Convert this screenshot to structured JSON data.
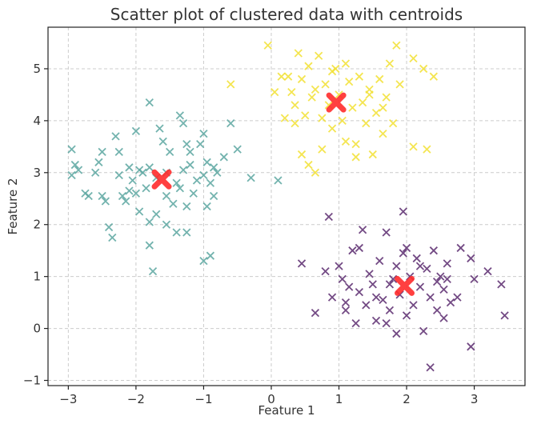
{
  "chart_data": {
    "type": "scatter",
    "title": "Scatter plot of clustered data with centroids",
    "xlabel": "Feature 1",
    "ylabel": "Feature 2",
    "xlim": [
      -3.3,
      3.75
    ],
    "ylim": [
      -1.1,
      5.8
    ],
    "xticks": [
      -3,
      -2,
      -1,
      0,
      1,
      2,
      3
    ],
    "yticks": [
      -1,
      0,
      1,
      2,
      3,
      4,
      5
    ],
    "grid": true,
    "series": [
      {
        "color": "#5aa6a0",
        "marker": "x",
        "points": [
          [
            -2.95,
            3.45
          ],
          [
            -2.9,
            3.15
          ],
          [
            -2.85,
            3.05
          ],
          [
            -2.95,
            2.95
          ],
          [
            -2.75,
            2.6
          ],
          [
            -2.7,
            2.55
          ],
          [
            -2.55,
            3.2
          ],
          [
            -2.5,
            3.4
          ],
          [
            -2.5,
            2.55
          ],
          [
            -2.45,
            2.45
          ],
          [
            -2.4,
            1.95
          ],
          [
            -2.35,
            1.75
          ],
          [
            -2.3,
            3.7
          ],
          [
            -2.25,
            3.4
          ],
          [
            -2.2,
            2.55
          ],
          [
            -2.15,
            2.45
          ],
          [
            -2.1,
            3.1
          ],
          [
            -2.05,
            2.85
          ],
          [
            -2.0,
            3.8
          ],
          [
            -2.0,
            2.6
          ],
          [
            -1.95,
            2.25
          ],
          [
            -1.9,
            3.0
          ],
          [
            -1.85,
            2.7
          ],
          [
            -1.8,
            4.35
          ],
          [
            -1.8,
            3.1
          ],
          [
            -1.8,
            2.05
          ],
          [
            -1.8,
            1.6
          ],
          [
            -1.75,
            1.1
          ],
          [
            -1.7,
            2.2
          ],
          [
            -1.65,
            3.85
          ],
          [
            -1.6,
            3.6
          ],
          [
            -1.55,
            3.0
          ],
          [
            -1.55,
            2.0
          ],
          [
            -1.5,
            3.4
          ],
          [
            -1.45,
            2.4
          ],
          [
            -1.4,
            2.8
          ],
          [
            -1.4,
            1.85
          ],
          [
            -1.35,
            4.1
          ],
          [
            -1.3,
            3.95
          ],
          [
            -1.3,
            3.05
          ],
          [
            -1.25,
            3.55
          ],
          [
            -1.25,
            2.35
          ],
          [
            -1.25,
            1.85
          ],
          [
            -1.2,
            3.15
          ],
          [
            -1.15,
            2.6
          ],
          [
            -1.1,
            2.85
          ],
          [
            -1.05,
            3.55
          ],
          [
            -1.0,
            2.95
          ],
          [
            -1.0,
            3.75
          ],
          [
            -1.0,
            1.3
          ],
          [
            -0.95,
            3.2
          ],
          [
            -0.95,
            2.35
          ],
          [
            -0.9,
            2.8
          ],
          [
            -0.9,
            1.4
          ],
          [
            -0.85,
            2.55
          ],
          [
            -0.8,
            3.0
          ],
          [
            -0.7,
            3.3
          ],
          [
            -0.6,
            3.95
          ],
          [
            -0.5,
            3.45
          ],
          [
            -0.3,
            2.9
          ],
          [
            0.1,
            2.85
          ],
          [
            -2.25,
            2.95
          ],
          [
            -2.1,
            2.65
          ],
          [
            -1.7,
            2.9
          ],
          [
            -1.55,
            2.55
          ],
          [
            -1.35,
            2.7
          ],
          [
            -2.6,
            3.0
          ],
          [
            -1.95,
            3.05
          ],
          [
            -1.2,
            3.4
          ],
          [
            -0.85,
            3.1
          ]
        ]
      },
      {
        "color": "#f2e033",
        "marker": "x",
        "points": [
          [
            -0.6,
            4.7
          ],
          [
            -0.05,
            5.45
          ],
          [
            0.25,
            4.85
          ],
          [
            0.3,
            4.55
          ],
          [
            0.35,
            4.3
          ],
          [
            0.35,
            3.95
          ],
          [
            0.4,
            5.3
          ],
          [
            0.45,
            4.8
          ],
          [
            0.5,
            4.1
          ],
          [
            0.55,
            3.15
          ],
          [
            0.55,
            5.05
          ],
          [
            0.6,
            4.45
          ],
          [
            0.65,
            3.0
          ],
          [
            0.7,
            5.25
          ],
          [
            0.75,
            4.05
          ],
          [
            0.75,
            3.45
          ],
          [
            0.8,
            4.7
          ],
          [
            0.85,
            4.3
          ],
          [
            0.9,
            3.85
          ],
          [
            0.95,
            5.0
          ],
          [
            1.0,
            4.5
          ],
          [
            1.05,
            4.0
          ],
          [
            1.1,
            5.1
          ],
          [
            1.1,
            3.6
          ],
          [
            1.15,
            4.75
          ],
          [
            1.2,
            4.25
          ],
          [
            1.25,
            3.55
          ],
          [
            1.3,
            4.85
          ],
          [
            1.35,
            4.35
          ],
          [
            1.4,
            3.95
          ],
          [
            1.45,
            4.6
          ],
          [
            1.5,
            3.35
          ],
          [
            1.55,
            4.15
          ],
          [
            1.6,
            4.8
          ],
          [
            1.65,
            3.75
          ],
          [
            1.7,
            4.45
          ],
          [
            1.75,
            5.1
          ],
          [
            1.8,
            3.95
          ],
          [
            1.85,
            5.45
          ],
          [
            1.9,
            4.7
          ],
          [
            2.1,
            5.2
          ],
          [
            2.1,
            3.5
          ],
          [
            2.25,
            5.0
          ],
          [
            2.3,
            3.45
          ],
          [
            2.4,
            4.85
          ],
          [
            0.05,
            4.55
          ],
          [
            0.2,
            4.05
          ],
          [
            0.45,
            3.35
          ],
          [
            0.9,
            4.95
          ],
          [
            1.25,
            3.3
          ],
          [
            0.15,
            4.85
          ],
          [
            1.65,
            4.25
          ],
          [
            0.65,
            4.6
          ],
          [
            1.45,
            4.5
          ]
        ]
      },
      {
        "color": "#5b2a6e",
        "marker": "x",
        "points": [
          [
            0.45,
            1.25
          ],
          [
            0.65,
            0.3
          ],
          [
            0.8,
            1.1
          ],
          [
            0.85,
            2.15
          ],
          [
            0.9,
            0.6
          ],
          [
            1.0,
            1.2
          ],
          [
            1.05,
            0.95
          ],
          [
            1.1,
            0.5
          ],
          [
            1.15,
            0.8
          ],
          [
            1.2,
            1.5
          ],
          [
            1.25,
            0.1
          ],
          [
            1.3,
            0.7
          ],
          [
            1.35,
            1.9
          ],
          [
            1.4,
            0.45
          ],
          [
            1.45,
            1.05
          ],
          [
            1.5,
            0.85
          ],
          [
            1.55,
            0.15
          ],
          [
            1.6,
            1.3
          ],
          [
            1.65,
            0.55
          ],
          [
            1.7,
            1.85
          ],
          [
            1.75,
            0.35
          ],
          [
            1.8,
            0.95
          ],
          [
            1.85,
            1.2
          ],
          [
            1.85,
            -0.1
          ],
          [
            1.9,
            0.65
          ],
          [
            1.95,
            2.25
          ],
          [
            2.0,
            1.55
          ],
          [
            2.0,
            0.25
          ],
          [
            2.05,
            1.0
          ],
          [
            2.1,
            0.45
          ],
          [
            2.15,
            1.35
          ],
          [
            2.2,
            0.8
          ],
          [
            2.25,
            -0.05
          ],
          [
            2.3,
            1.15
          ],
          [
            2.35,
            0.6
          ],
          [
            2.35,
            -0.75
          ],
          [
            2.4,
            1.5
          ],
          [
            2.45,
            0.35
          ],
          [
            2.5,
            1.0
          ],
          [
            2.55,
            0.75
          ],
          [
            2.55,
            0.2
          ],
          [
            2.6,
            1.25
          ],
          [
            2.65,
            0.5
          ],
          [
            2.75,
            0.6
          ],
          [
            2.8,
            1.55
          ],
          [
            2.95,
            1.35
          ],
          [
            2.95,
            -0.35
          ],
          [
            3.0,
            0.95
          ],
          [
            3.2,
            1.1
          ],
          [
            3.4,
            0.85
          ],
          [
            3.45,
            0.25
          ],
          [
            1.55,
            0.6
          ],
          [
            1.7,
            0.1
          ],
          [
            1.95,
            1.45
          ],
          [
            2.2,
            1.2
          ],
          [
            2.45,
            0.9
          ],
          [
            1.3,
            1.55
          ],
          [
            1.1,
            0.35
          ],
          [
            2.6,
            0.95
          ],
          [
            1.75,
            0.85
          ]
        ]
      }
    ],
    "centroids": {
      "color": "#ff2b2b",
      "marker": "X",
      "points": [
        [
          -1.62,
          2.87
        ],
        [
          0.96,
          4.35
        ],
        [
          1.97,
          0.82
        ]
      ]
    }
  }
}
